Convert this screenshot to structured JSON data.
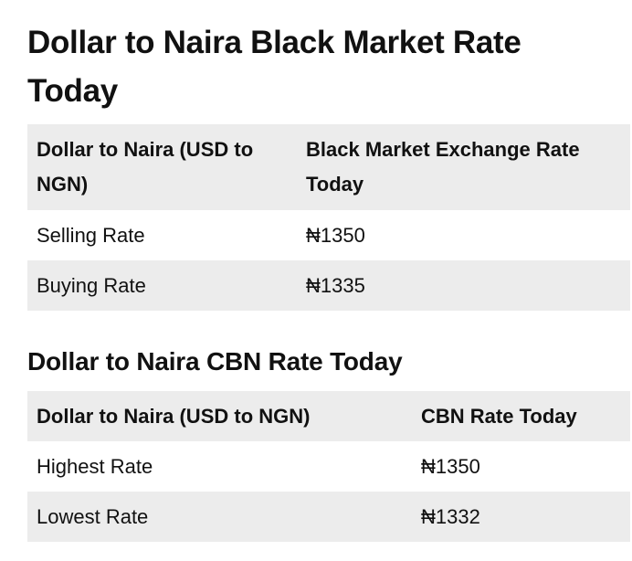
{
  "heading1": "Dollar to Naira Black Market Rate Today",
  "table1": {
    "headers": [
      "Dollar to Naira (USD to NGN)",
      "Black Market Exchange Rate Today"
    ],
    "rows": [
      [
        "Selling Rate",
        "₦1350"
      ],
      [
        "Buying Rate",
        "₦1335"
      ]
    ]
  },
  "heading2": "Dollar to Naira CBN Rate Today",
  "table2": {
    "headers": [
      "Dollar to Naira (USD to NGN)",
      "CBN Rate Today"
    ],
    "rows": [
      [
        "Highest Rate",
        "₦1350"
      ],
      [
        "Lowest Rate",
        "₦1332"
      ]
    ]
  },
  "colors": {
    "header_bg": "#ececec",
    "text": "#111111"
  }
}
